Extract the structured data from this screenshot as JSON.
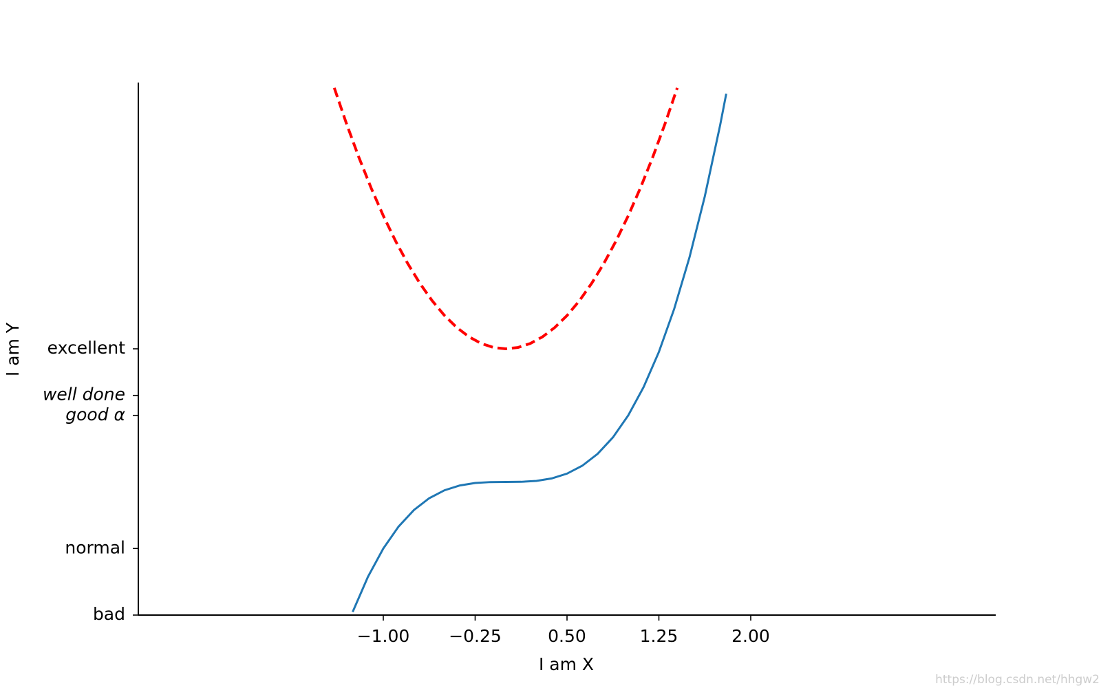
{
  "chart_data": {
    "type": "line",
    "xlabel": "I am X",
    "ylabel": "I am Y",
    "xlim": [
      -3,
      4
    ],
    "ylim": [
      -2,
      6
    ],
    "xticks": [
      {
        "value": -1,
        "label": "−1.00"
      },
      {
        "value": -0.25,
        "label": "−0.25"
      },
      {
        "value": 0.5,
        "label": "0.50"
      },
      {
        "value": 1.25,
        "label": "1.25"
      },
      {
        "value": 2,
        "label": "2.00"
      }
    ],
    "yticks": [
      {
        "value": -2,
        "label": "bad"
      },
      {
        "value": -1,
        "label": "normal"
      },
      {
        "value": 1,
        "label": "good α"
      },
      {
        "value": 1.3,
        "label": "well done"
      },
      {
        "value": 2,
        "label": "excellent"
      }
    ],
    "grid": false,
    "series": [
      {
        "color": "#1f77b4",
        "dash": false,
        "x": [
          -1.25,
          -1.125,
          -1,
          -0.875,
          -0.75,
          -0.625,
          -0.5,
          -0.375,
          -0.25,
          -0.125,
          0,
          0.125,
          0.25,
          0.375,
          0.5,
          0.625,
          0.75,
          0.875,
          1,
          1.125,
          1.25,
          1.375,
          1.5,
          1.625,
          1.75,
          1.8
        ],
        "values": [
          -1.953,
          -1.424,
          -1,
          -0.67,
          -0.422,
          -0.244,
          -0.125,
          -0.053,
          -0.016,
          -0.002,
          0,
          0.002,
          0.016,
          0.053,
          0.125,
          0.244,
          0.422,
          0.67,
          1,
          1.424,
          1.953,
          2.6,
          3.375,
          4.291,
          5.359,
          5.832
        ]
      },
      {
        "color": "#ff0000",
        "dash": true,
        "x": [
          -1.4,
          -1.3,
          -1.2,
          -1.1,
          -1,
          -0.9,
          -0.8,
          -0.7,
          -0.6,
          -0.5,
          -0.4,
          -0.3,
          -0.2,
          -0.1,
          0,
          0.1,
          0.2,
          0.3,
          0.4,
          0.5,
          0.6,
          0.7,
          0.8,
          0.9,
          1,
          1.1,
          1.2,
          1.3,
          1.4
        ],
        "values": [
          5.92,
          5.38,
          4.88,
          4.42,
          4,
          3.62,
          3.28,
          2.98,
          2.72,
          2.5,
          2.32,
          2.18,
          2.08,
          2.02,
          2,
          2.02,
          2.08,
          2.18,
          2.32,
          2.5,
          2.72,
          2.98,
          3.28,
          3.62,
          4,
          4.42,
          4.88,
          5.38,
          5.92
        ]
      }
    ]
  },
  "watermark": "https://blog.csdn.net/hhgw2"
}
